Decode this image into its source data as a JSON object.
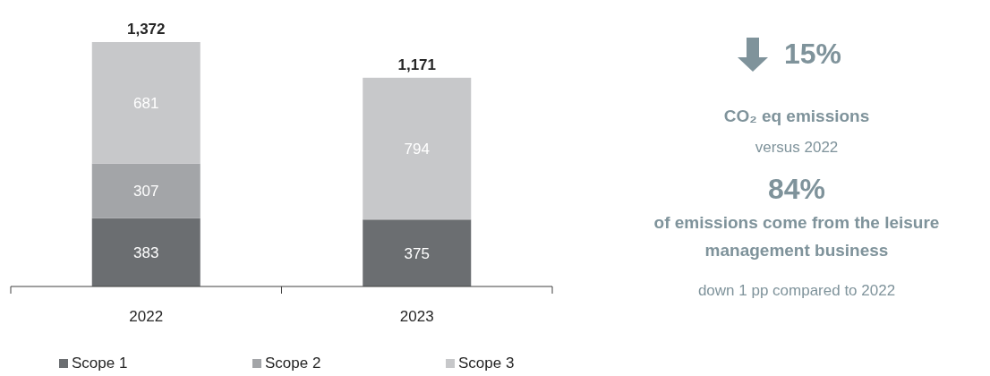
{
  "chart_data": [
    {
      "type": "bar",
      "stacked": true,
      "categories": [
        "2022",
        "2023"
      ],
      "series": [
        {
          "name": "Scope 1",
          "color": "#6b6e71",
          "values": [
            383,
            375
          ],
          "value_labels": [
            "383",
            "375"
          ]
        },
        {
          "name": "Scope 2",
          "color": "#a3a5a8",
          "values": [
            307,
            2
          ],
          "value_labels": [
            "307",
            null
          ]
        },
        {
          "name": "Scope 3",
          "color": "#c7c8ca",
          "values": [
            681,
            794
          ],
          "value_labels": [
            "681",
            "794"
          ]
        }
      ],
      "totals": [
        "1,372",
        "1,171"
      ],
      "legend": "bottom"
    },
    {
      "type": "other",
      "annotations": [
        "15%",
        "CO₂ eq emissions",
        "versus 2022",
        "84%",
        "of emissions come from the leisure management business",
        "down 1 pp compared to 2022"
      ]
    }
  ]
}
